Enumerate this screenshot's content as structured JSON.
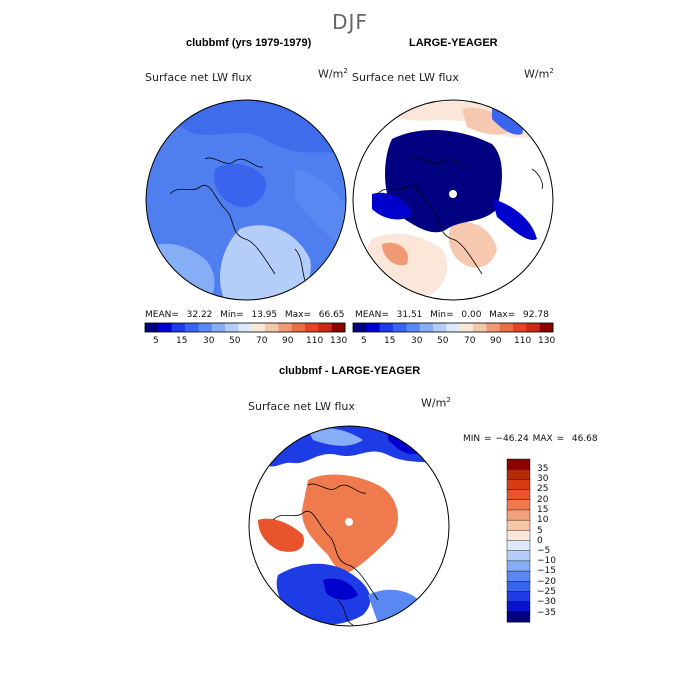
{
  "season": "DJF",
  "colors": {
    "scale": [
      "#000080",
      "#0000cd",
      "#1e3ce6",
      "#3a64ee",
      "#5a88f2",
      "#86aef7",
      "#b4cdf9",
      "#dce8fb",
      "#fbe7da",
      "#f6c8b0",
      "#f09a76",
      "#ea6f48",
      "#e2452a",
      "#c82a12",
      "#8b0000"
    ],
    "diff_scale": [
      "#000080",
      "#0a14c8",
      "#1e3ce6",
      "#3764ee",
      "#5a88f2",
      "#86aef7",
      "#b4cdf9",
      "#dce8fb",
      "#fbe7da",
      "#f8c6a8",
      "#f3a07a",
      "#ef7a4e",
      "#e8552c",
      "#d83c12",
      "#b42a08",
      "#8b0000"
    ]
  },
  "chart_data": [
    {
      "type": "heatmap",
      "projection": "north-polar-stereographic",
      "title": "clubbmf (yrs 1979-1979)",
      "variable": "Surface net LW flux",
      "units_base": "W/m",
      "units_exp": "2",
      "stats": {
        "mean_label": "MEAN=",
        "mean": "32.22",
        "min_label": "Min=",
        "min": "13.95",
        "max_label": "Max=",
        "max": "66.65"
      },
      "colorbar": {
        "orientation": "horizontal",
        "tick_labels": [
          "5",
          "15",
          "30",
          "50",
          "70",
          "90",
          "110",
          "130"
        ]
      }
    },
    {
      "type": "heatmap",
      "projection": "north-polar-stereographic",
      "title": "LARGE-YEAGER",
      "variable": "Surface net LW flux",
      "units_base": "W/m",
      "units_exp": "2",
      "stats": {
        "mean_label": "MEAN=",
        "mean": "31.51",
        "min_label": "Min=",
        "min": "0.00",
        "max_label": "Max=",
        "max": "92.78"
      },
      "colorbar": {
        "orientation": "horizontal",
        "tick_labels": [
          "5",
          "15",
          "30",
          "50",
          "70",
          "90",
          "110",
          "130"
        ]
      }
    },
    {
      "type": "heatmap",
      "projection": "north-polar-stereographic",
      "title": "clubbmf - LARGE-YEAGER",
      "variable": "Surface net LW flux",
      "units_base": "W/m",
      "units_exp": "2",
      "stats": {
        "min_label": "MIN =",
        "min": "−46.24",
        "max_label": "MAX =",
        "max": "46.68"
      },
      "colorbar": {
        "orientation": "vertical",
        "tick_labels": [
          "35",
          "30",
          "25",
          "20",
          "15",
          "10",
          "5",
          "0",
          "−5",
          "−10",
          "−15",
          "−20",
          "−25",
          "−30",
          "−35"
        ]
      }
    }
  ]
}
